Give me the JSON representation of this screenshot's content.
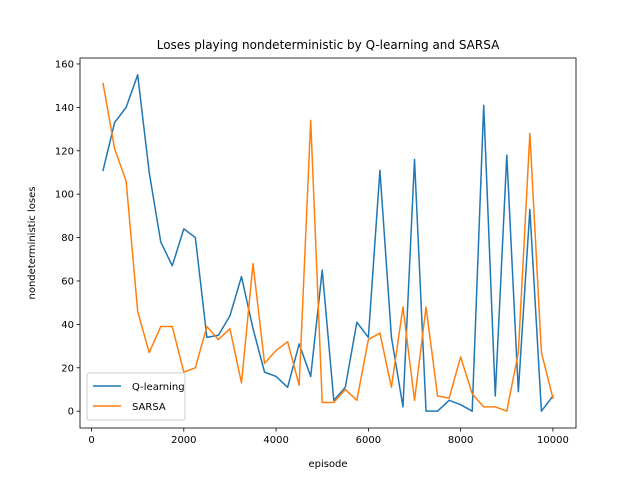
{
  "chart_data": {
    "type": "line",
    "title": "Loses playing nondeterministic by Q-learning and SARSA",
    "xlabel": "episode",
    "ylabel": "nondeterministic loses",
    "xlim": [
      -250,
      10500
    ],
    "ylim": [
      -7.75,
      162.75
    ],
    "xticks": [
      0,
      2000,
      4000,
      6000,
      8000,
      10000
    ],
    "yticks": [
      0,
      20,
      40,
      60,
      80,
      100,
      120,
      140,
      160
    ],
    "grid": false,
    "legend_position": "lower-left",
    "x": [
      250,
      500,
      750,
      1000,
      1250,
      1500,
      1750,
      2000,
      2250,
      2500,
      2750,
      3000,
      3250,
      3500,
      3750,
      4000,
      4250,
      4500,
      4750,
      5000,
      5250,
      5500,
      5750,
      6000,
      6250,
      6500,
      6750,
      7000,
      7250,
      7500,
      7750,
      8000,
      8250,
      8500,
      8750,
      9000,
      9250,
      9500,
      9750,
      10000
    ],
    "series": [
      {
        "name": "Q-learning",
        "color": "#1f77b4",
        "values": [
          111,
          133,
          140,
          155,
          110,
          78,
          67,
          84,
          80,
          34,
          35,
          44,
          62,
          38,
          18,
          16,
          11,
          31,
          16,
          65,
          5,
          11,
          41,
          34,
          111,
          34,
          2,
          116,
          0,
          0,
          5,
          3,
          0,
          141,
          7,
          118,
          9,
          93,
          0,
          7
        ]
      },
      {
        "name": "SARSA",
        "color": "#ff7f0e",
        "values": [
          151,
          121,
          106,
          46,
          27,
          39,
          39,
          18,
          20,
          39,
          33,
          38,
          13,
          68,
          22,
          28,
          32,
          12,
          134,
          4,
          4,
          10,
          5,
          33,
          36,
          11,
          48,
          5,
          48,
          7,
          6,
          25,
          8,
          2,
          2,
          0,
          27,
          128,
          27,
          6
        ]
      }
    ]
  }
}
